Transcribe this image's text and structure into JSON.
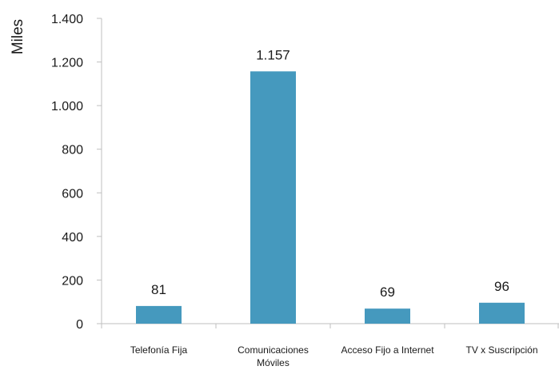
{
  "chart_data": {
    "type": "bar",
    "ylabel": "Miles",
    "ylim": [
      0,
      1400
    ],
    "yticks": [
      0,
      200,
      400,
      600,
      800,
      1000,
      1200,
      1400
    ],
    "ytick_labels": [
      "0",
      "200",
      "400",
      "600",
      "800",
      "1.000",
      "1.200",
      "1.400"
    ],
    "categories": [
      [
        "Telefonía Fija"
      ],
      [
        "Comunicaciones",
        "Móviles"
      ],
      [
        "Acceso Fijo a Internet"
      ],
      [
        "TV x Suscripción"
      ]
    ],
    "values": [
      81,
      1157,
      69,
      96
    ],
    "value_labels": [
      "81",
      "1.157",
      "69",
      "96"
    ],
    "bar_color": "#4599be",
    "grid": false,
    "legend": "none"
  }
}
